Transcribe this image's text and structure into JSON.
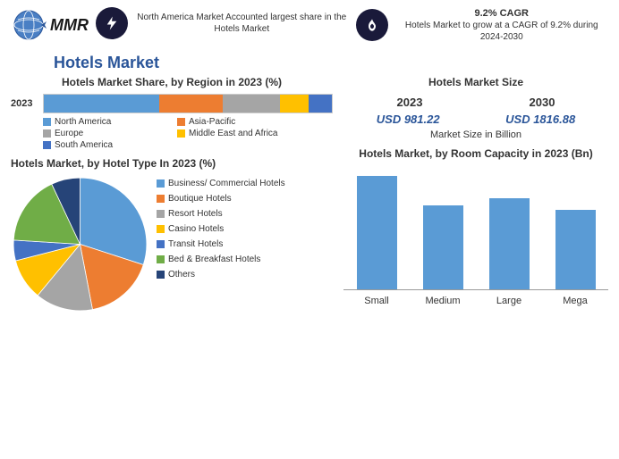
{
  "logo": {
    "text": "MMR"
  },
  "header_block1": {
    "text": "North America Market Accounted largest share in the Hotels Market"
  },
  "header_block2": {
    "title": "9.2% CAGR",
    "text": "Hotels Market to grow at a CAGR of 9.2% during 2024-2030"
  },
  "main_title": "Hotels Market",
  "market_share": {
    "title": "Hotels Market Share, by Region in 2023 (%)",
    "year": "2023",
    "segments": [
      {
        "label": "North America",
        "value": 40,
        "color": "#5a9bd5"
      },
      {
        "label": "Asia-Pacific",
        "value": 22,
        "color": "#ed7d31"
      },
      {
        "label": "Europe",
        "value": 20,
        "color": "#a5a5a5"
      },
      {
        "label": "Middle East and Africa",
        "value": 10,
        "color": "#ffc000"
      },
      {
        "label": "South America",
        "value": 8,
        "color": "#4472c4"
      }
    ]
  },
  "market_size": {
    "title": "Hotels Market Size",
    "year1": "2023",
    "year2": "2030",
    "val1": "USD 981.22",
    "val2": "USD 1816.88",
    "caption": "Market Size in Billion"
  },
  "hotel_type": {
    "title": "Hotels Market, by Hotel Type In 2023 (%)",
    "slices": [
      {
        "label": "Business/ Commercial Hotels",
        "value": 30,
        "color": "#5a9bd5"
      },
      {
        "label": "Boutique Hotels",
        "value": 17,
        "color": "#ed7d31"
      },
      {
        "label": "Resort Hotels",
        "value": 14,
        "color": "#a5a5a5"
      },
      {
        "label": "Casino Hotels",
        "value": 10,
        "color": "#ffc000"
      },
      {
        "label": "Transit Hotels",
        "value": 5,
        "color": "#4472c4"
      },
      {
        "label": "Bed & Breakfast Hotels",
        "value": 17,
        "color": "#70ad47"
      },
      {
        "label": "Others",
        "value": 7,
        "color": "#264478"
      }
    ]
  },
  "room_capacity": {
    "title": "Hotels Market, by Room Capacity in 2023 (Bn)",
    "bars": [
      {
        "label": "Small",
        "value": 100,
        "color": "#5a9bd5"
      },
      {
        "label": "Medium",
        "value": 74,
        "color": "#5a9bd5"
      },
      {
        "label": "Large",
        "value": 80,
        "color": "#5a9bd5"
      },
      {
        "label": "Mega",
        "value": 70,
        "color": "#5a9bd5"
      }
    ],
    "ymax": 110
  }
}
